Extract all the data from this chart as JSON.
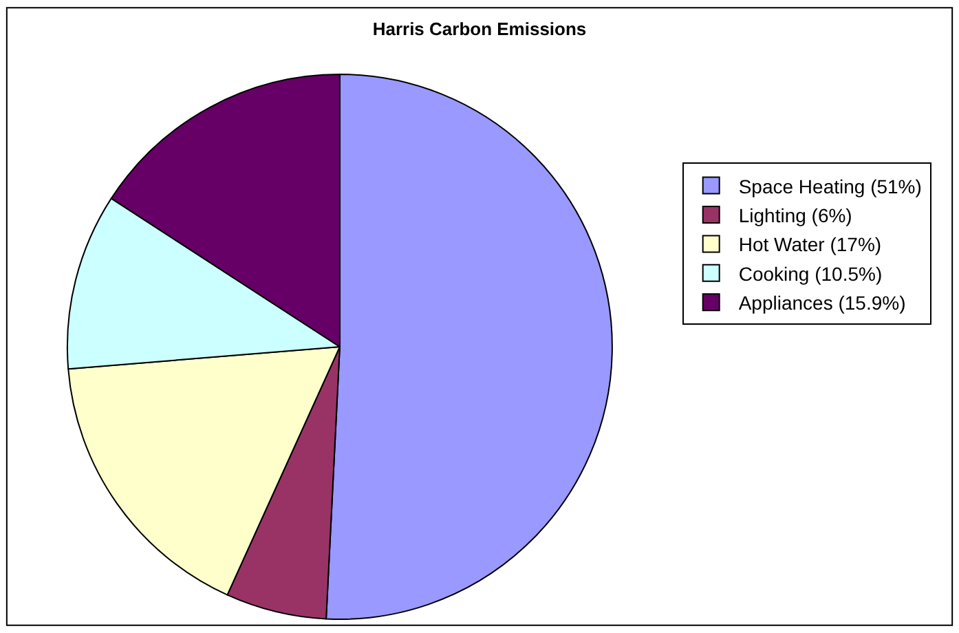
{
  "chart_data": {
    "type": "pie",
    "title": "Harris Carbon Emissions",
    "categories": [
      "Space Heating (51%)",
      "Lighting (6%)",
      "Hot Water (17%)",
      "Cooking (10.5%)",
      "Appliances (15.9%)"
    ],
    "values": [
      51,
      6,
      17,
      10.5,
      15.9
    ],
    "colors": [
      "#9999ff",
      "#993366",
      "#ffffcc",
      "#ccffff",
      "#660066"
    ],
    "legend": "right"
  }
}
